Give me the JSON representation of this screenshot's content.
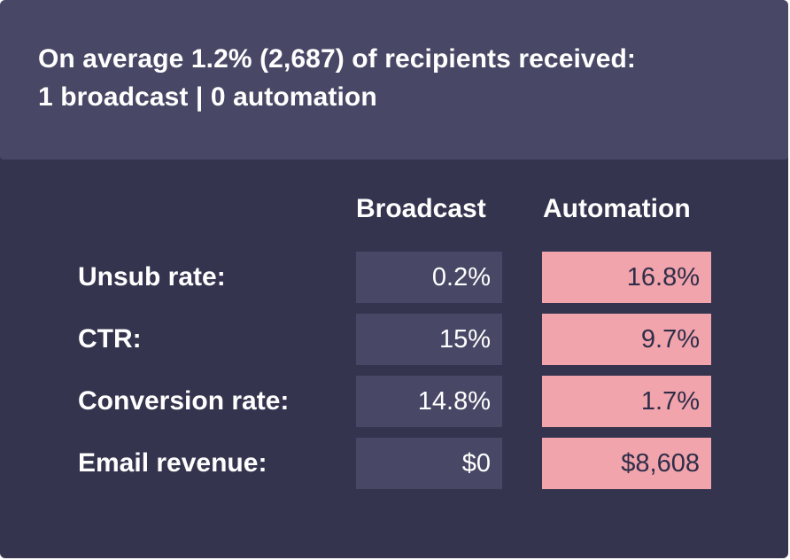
{
  "summary": {
    "line1": "On average 1.2% (2,687) of recipients received:",
    "line2": "1 broadcast | 0 automation"
  },
  "columns": {
    "broadcast": "Broadcast",
    "automation": "Automation"
  },
  "rows": [
    {
      "label": "Unsub rate:",
      "broadcast": "0.2%",
      "automation": "16.8%"
    },
    {
      "label": "CTR:",
      "broadcast": "15%",
      "automation": "9.7%"
    },
    {
      "label": "Conversion rate:",
      "broadcast": "14.8%",
      "automation": "1.7%"
    },
    {
      "label": "Email revenue:",
      "broadcast": "$0",
      "automation": "$8,608"
    }
  ],
  "colors": {
    "panel_background": "#34344f",
    "header_background": "#484866",
    "broadcast_cell": "#484866",
    "automation_highlight": "#f2a4ad"
  }
}
